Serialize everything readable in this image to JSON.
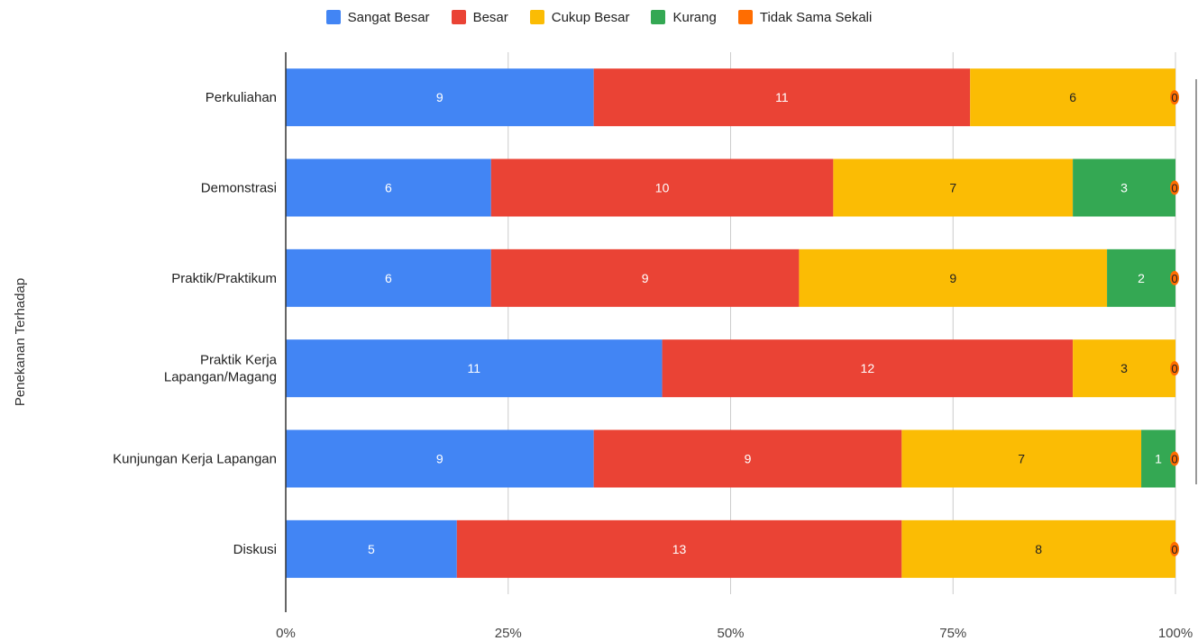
{
  "chart_data": {
    "type": "bar",
    "orientation": "horizontal",
    "stacked": "percent",
    "title": "",
    "xlabel": "",
    "ylabel": "Penekanan Terhadap",
    "categories": [
      [
        "Perkuliahan"
      ],
      [
        "Demonstrasi"
      ],
      [
        "Praktik/Praktikum"
      ],
      [
        "Praktik Kerja",
        "Lapangan/Magang"
      ],
      [
        "Kunjungan Kerja Lapangan"
      ],
      [
        "Diskusi"
      ]
    ],
    "series": [
      {
        "name": "Sangat Besar",
        "color": "#4285F4",
        "label_color": "#ffffff",
        "values": [
          9,
          6,
          6,
          11,
          9,
          5
        ]
      },
      {
        "name": "Besar",
        "color": "#EA4335",
        "label_color": "#ffffff",
        "values": [
          11,
          10,
          9,
          12,
          9,
          13
        ]
      },
      {
        "name": "Cukup Besar",
        "color": "#FBBC04",
        "label_color": "#222222",
        "values": [
          6,
          7,
          9,
          3,
          7,
          8
        ]
      },
      {
        "name": "Kurang",
        "color": "#34A853",
        "label_color": "#ffffff",
        "values": [
          0,
          3,
          2,
          0,
          1,
          0
        ]
      },
      {
        "name": "Tidak Sama Sekali",
        "color": "#FF6D01",
        "label_color": "#222222",
        "values": [
          0,
          0,
          0,
          0,
          0,
          0
        ]
      }
    ],
    "x_ticks": [
      "0%",
      "25%",
      "50%",
      "75%",
      "100%"
    ],
    "xlim": [
      0,
      100
    ],
    "grid": true,
    "legend_position": "top"
  }
}
